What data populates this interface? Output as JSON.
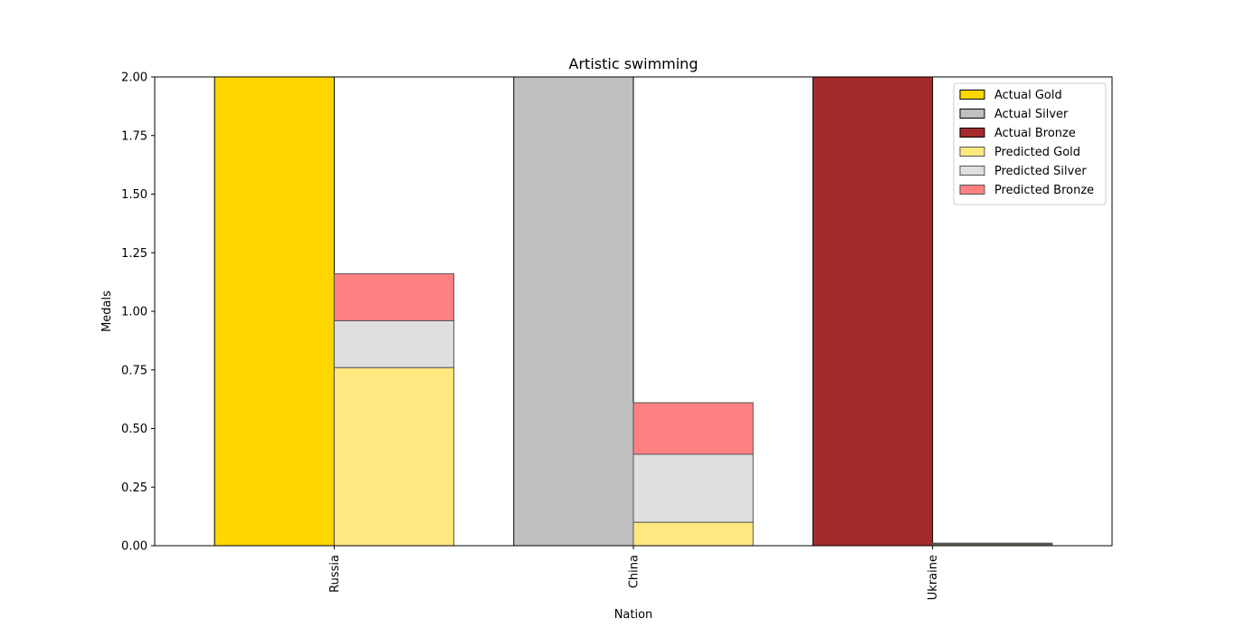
{
  "chart_data": {
    "type": "bar",
    "title": "Artistic swimming",
    "xlabel": "Nation",
    "ylabel": "Medals",
    "ylim": [
      0,
      2.0
    ],
    "yticks": [
      "0.00",
      "0.25",
      "0.50",
      "0.75",
      "1.00",
      "1.25",
      "1.50",
      "1.75",
      "2.00"
    ],
    "categories": [
      "Russia",
      "China",
      "Ukraine"
    ],
    "series": [
      {
        "name": "Actual Gold",
        "group": "actual",
        "values": [
          2,
          0,
          0
        ],
        "color": "#FFD700"
      },
      {
        "name": "Actual Silver",
        "group": "actual",
        "values": [
          0,
          2,
          0
        ],
        "color": "#C0C0C0"
      },
      {
        "name": "Actual Bronze",
        "group": "actual",
        "values": [
          0,
          0,
          2
        ],
        "color": "#A52A2A"
      },
      {
        "name": "Predicted Gold",
        "group": "predicted",
        "values": [
          0.76,
          0.1,
          0.005
        ],
        "color": "#FFE880"
      },
      {
        "name": "Predicted Silver",
        "group": "predicted",
        "values": [
          0.2,
          0.29,
          0.003
        ],
        "color": "#DFDFDF"
      },
      {
        "name": "Predicted Bronze",
        "group": "predicted",
        "values": [
          0.2,
          0.22,
          0.003
        ],
        "color": "#FF8080"
      }
    ],
    "legend_position": "top-right",
    "grid": false
  }
}
